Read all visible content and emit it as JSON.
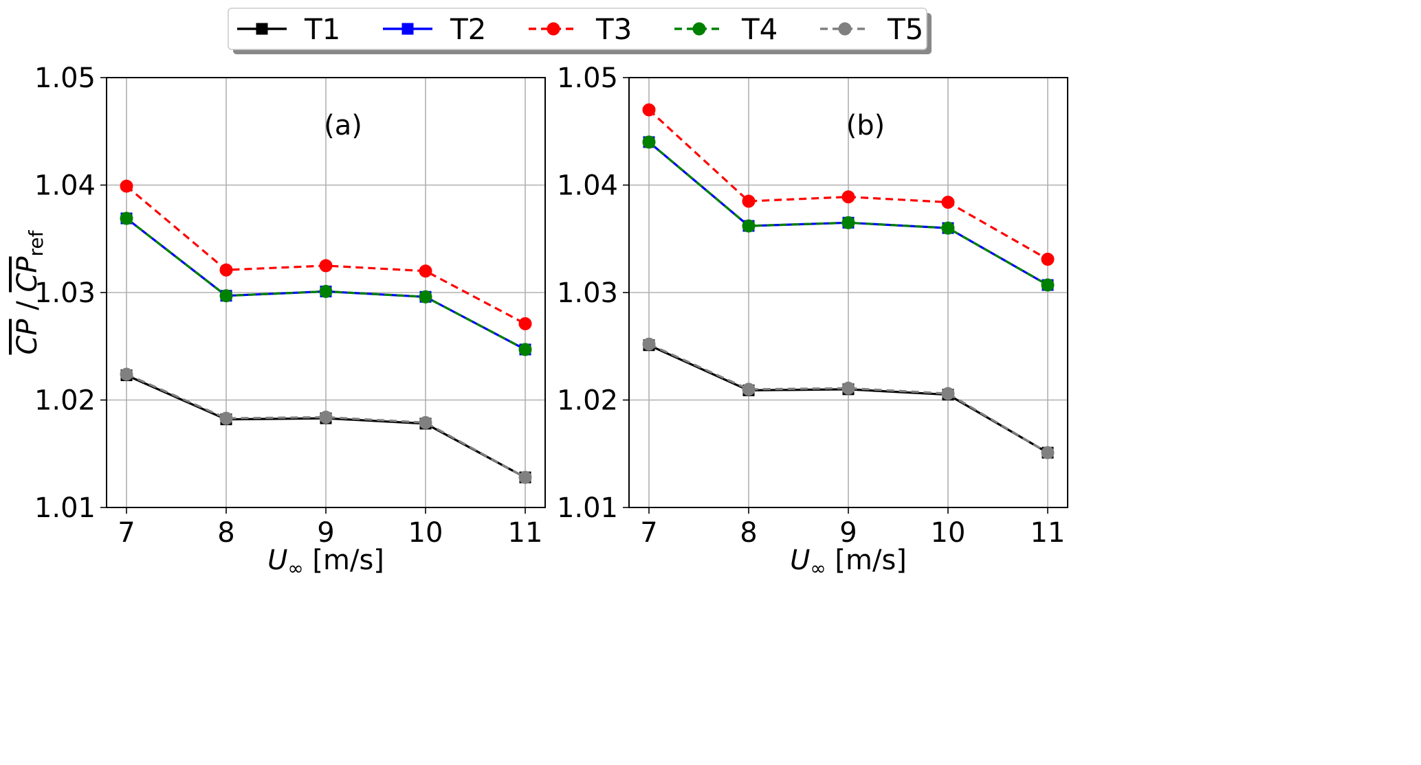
{
  "chart_data": {
    "type": "line",
    "y_axis_label": {
      "prefix": "CP",
      "separator": " / ",
      "main": "CP",
      "sub": "ref"
    },
    "legend": {
      "placement": "top-center",
      "entries": [
        {
          "label": "T1",
          "color": "#000000",
          "marker": "square",
          "dash": "solid"
        },
        {
          "label": "T2",
          "color": "#0000ff",
          "marker": "square",
          "dash": "solid"
        },
        {
          "label": "T3",
          "color": "#ff0000",
          "marker": "circle",
          "dash": "dashed"
        },
        {
          "label": "T4",
          "color": "#008000",
          "marker": "circle",
          "dash": "dashed"
        },
        {
          "label": "T5",
          "color": "#808080",
          "marker": "circle",
          "dash": "dashed"
        }
      ]
    },
    "panels": [
      {
        "label": "(a)",
        "xlabel": {
          "symbol": "U",
          "sub": "∞",
          "unit": " [m/s]"
        },
        "x": [
          7,
          8,
          9,
          10,
          11
        ],
        "xlim": [
          6.8,
          11.2
        ],
        "ylim": [
          1.01,
          1.05
        ],
        "xticks": [
          "7",
          "8",
          "9",
          "10",
          "11"
        ],
        "yticks": [
          "1.01",
          "1.02",
          "1.03",
          "1.04",
          "1.05"
        ],
        "grid": true,
        "series": [
          {
            "name": "T1",
            "values": [
              1.0223,
              1.0182,
              1.0183,
              1.0178,
              1.0128
            ]
          },
          {
            "name": "T2",
            "values": [
              1.0369,
              1.0297,
              1.0301,
              1.0296,
              1.0247
            ]
          },
          {
            "name": "T3",
            "values": [
              1.0399,
              1.0321,
              1.0325,
              1.032,
              1.0271
            ]
          },
          {
            "name": "T4",
            "values": [
              1.0369,
              1.0297,
              1.0301,
              1.0296,
              1.0247
            ]
          },
          {
            "name": "T5",
            "values": [
              1.0224,
              1.0183,
              1.0184,
              1.0179,
              1.0128
            ]
          }
        ]
      },
      {
        "label": "(b)",
        "xlabel": {
          "symbol": "U",
          "sub": "∞",
          "unit": " [m/s]"
        },
        "x": [
          7,
          8,
          9,
          10,
          11
        ],
        "xlim": [
          6.8,
          11.2
        ],
        "ylim": [
          1.01,
          1.05
        ],
        "xticks": [
          "7",
          "8",
          "9",
          "10",
          "11"
        ],
        "yticks": [
          "1.01",
          "1.02",
          "1.03",
          "1.04",
          "1.05"
        ],
        "grid": true,
        "series": [
          {
            "name": "T1",
            "values": [
              1.0251,
              1.0209,
              1.021,
              1.0205,
              1.0151
            ]
          },
          {
            "name": "T2",
            "values": [
              1.044,
              1.0362,
              1.0365,
              1.036,
              1.0307
            ]
          },
          {
            "name": "T3",
            "values": [
              1.047,
              1.0385,
              1.0389,
              1.0384,
              1.0331
            ]
          },
          {
            "name": "T4",
            "values": [
              1.044,
              1.0362,
              1.0365,
              1.036,
              1.0307
            ]
          },
          {
            "name": "T5",
            "values": [
              1.0252,
              1.021,
              1.0211,
              1.0206,
              1.0151
            ]
          }
        ]
      }
    ]
  }
}
